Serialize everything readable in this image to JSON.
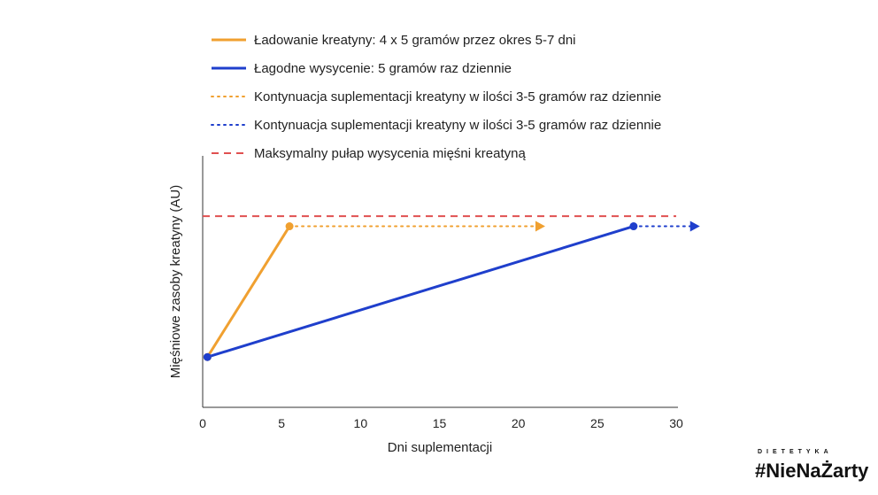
{
  "chart_data": {
    "type": "line",
    "title": "",
    "xlabel": "Dni suplementacji",
    "ylabel": "Mięśniowe zasoby kreatyny (AU)",
    "xlim": [
      0,
      30
    ],
    "ylim": [
      0,
      100
    ],
    "xticks": [
      0,
      5,
      10,
      15,
      20,
      25,
      30
    ],
    "xtick_labels": [
      "0",
      "5",
      "10",
      "15",
      "20",
      "25",
      "30"
    ],
    "grid": false,
    "legend_position": "top",
    "series": [
      {
        "name": "Ładowanie kreatyny: 4 x 5 gramów przez okres 5-7 dni",
        "color": "#f0a030",
        "style": "solid",
        "marker": "circle",
        "x": [
          0.3,
          5.5
        ],
        "y": [
          20,
          72
        ]
      },
      {
        "name": "Łagodne wysycenie: 5 gramów raz dziennie",
        "color": "#1f3fcc",
        "style": "solid",
        "marker": "circle",
        "x": [
          0.3,
          27.3
        ],
        "y": [
          20,
          72
        ]
      },
      {
        "name": "Kontynuacja suplementacji kreatyny w ilości 3-5 gramów raz dziennie",
        "color": "#f0a030",
        "style": "dotted",
        "arrow": true,
        "x": [
          5.5,
          21.7
        ],
        "y": [
          72,
          72
        ]
      },
      {
        "name": "Kontynuacja suplementacji kreatyny w ilości 3-5 gramów raz dziennie",
        "color": "#1f3fcc",
        "style": "dotted",
        "arrow": true,
        "x": [
          27.3,
          31.5
        ],
        "y": [
          72,
          72
        ]
      },
      {
        "name": "Maksymalny pułap wysycenia mięśni kreatyną",
        "color": "#e05050",
        "style": "dashed",
        "x": [
          0,
          30
        ],
        "y": [
          76,
          76
        ]
      }
    ]
  },
  "branding": {
    "small": "DIETETYKA",
    "big": "#NieNaŻarty"
  }
}
